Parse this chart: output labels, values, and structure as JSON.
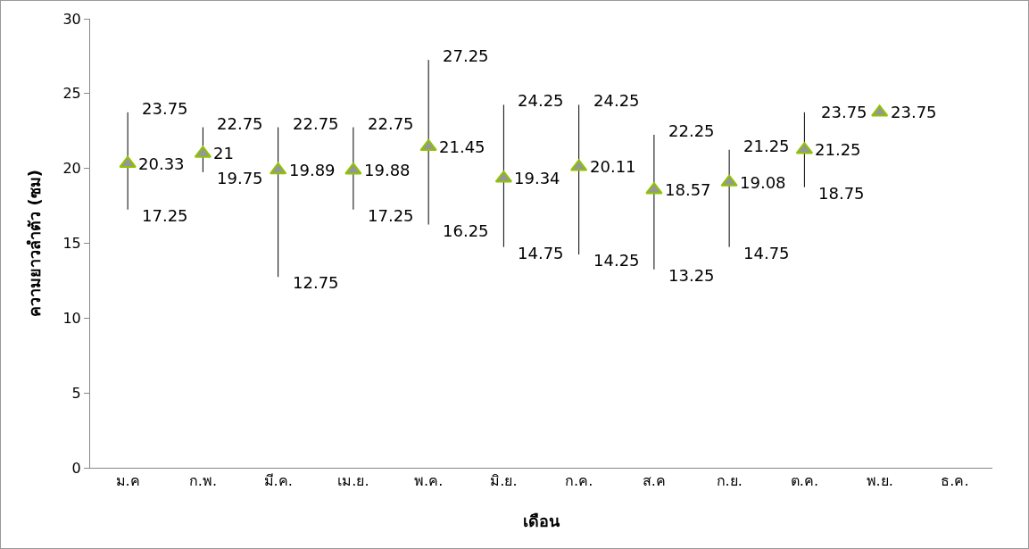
{
  "chart_data": {
    "type": "scatter",
    "xlabel": "เดือน",
    "ylabel": "ความยาวลำตัว (ซม)",
    "categories": [
      "ม.ค",
      "ก.พ.",
      "มี.ค.",
      "เม.ย.",
      "พ.ค.",
      "มิ.ย.",
      "ก.ค.",
      "ส.ค",
      "ก.ย.",
      "ต.ค.",
      "พ.ย.",
      "ธ.ค."
    ],
    "series": [
      {
        "color": "#969696",
        "values": [
          20.33,
          21,
          19.89,
          19.88,
          21.45,
          19.34,
          20.11,
          18.57,
          19.08,
          21.25,
          23.75,
          null
        ],
        "errors": [
          [
            17.25,
            23.75
          ],
          [
            19.75,
            22.75
          ],
          [
            12.75,
            22.75
          ],
          [
            17.25,
            22.75
          ],
          [
            16.25,
            27.25
          ],
          [
            14.75,
            24.25
          ],
          [
            14.25,
            24.25
          ],
          [
            13.25,
            22.25
          ],
          [
            14.75,
            21.25
          ],
          [
            18.75,
            23.75
          ],
          [
            23.75,
            23.75
          ],
          null
        ]
      }
    ],
    "annotations": [
      {
        "text": "23.75",
        "x": "ม.ค",
        "y": 23.75
      },
      {
        "text": "17.25",
        "x": "ม.ค",
        "y": 17.25
      },
      {
        "text": "22.75",
        "x": "ก.พ.",
        "y": 22.75
      },
      {
        "text": "19.75",
        "x": "ก.พ.",
        "y": 19.75
      },
      {
        "text": "22.75",
        "x": "มี.ค.",
        "y": 22.75
      },
      {
        "text": "12.75",
        "x": "มี.ค.",
        "y": 12.75
      },
      {
        "text": "22.75",
        "x": "เม.ย.",
        "y": 22.75
      },
      {
        "text": "17.25",
        "x": "เม.ย.",
        "y": 17.25
      },
      {
        "text": "27.25",
        "x": "พ.ค.",
        "y": 27.25
      },
      {
        "text": "16.25",
        "x": "พ.ค.",
        "y": 16.25
      },
      {
        "text": "24.25",
        "x": "มิ.ย.",
        "y": 24.25
      },
      {
        "text": "14.75",
        "x": "มิ.ย.",
        "y": 14.75
      },
      {
        "text": "24.25",
        "x": "ก.ค.",
        "y": 24.25
      },
      {
        "text": "14.25",
        "x": "ก.ค.",
        "y": 14.25
      },
      {
        "text": "22.25",
        "x": "ส.ค",
        "y": 22.25
      },
      {
        "text": "13.25",
        "x": "ส.ค",
        "y": 13.25
      },
      {
        "text": "21.25",
        "x": "ก.ย.",
        "y": 21.25
      },
      {
        "text": "14.75",
        "x": "ก.ย.",
        "y": 14.75
      },
      {
        "text": "18.75",
        "x": "ต.ค.",
        "y": 18.75
      },
      {
        "text": "23.75",
        "x": "พ.ย.",
        "y": 23.75
      }
    ],
    "ylim": [
      0,
      30
    ],
    "yticks": [
      0,
      5,
      10,
      15,
      20,
      25,
      30
    ],
    "grid": false,
    "marker": "triangle",
    "data_labels": true
  }
}
